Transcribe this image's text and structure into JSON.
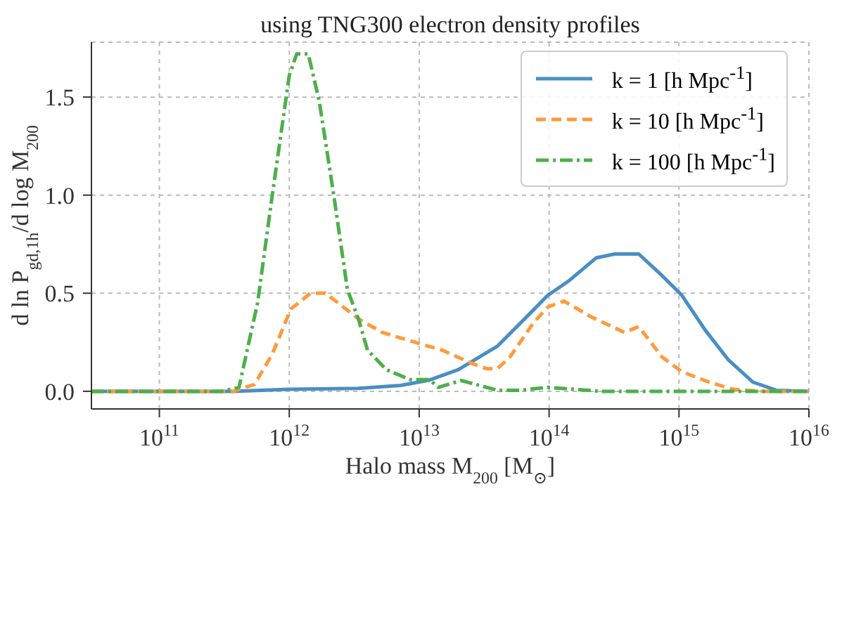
{
  "chart_data": {
    "type": "line",
    "title": "using TNG300 electron density profiles",
    "xlabel": "Halo mass M$_{200}$ [M$_{⊙}$]",
    "ylabel": "d ln P$_{gd,1h}$/d log M$_{200}$",
    "log": "x",
    "grid": true,
    "legend": "top right",
    "xlim": [
      30000000000.0,
      1e+16
    ],
    "ylim": [
      -0.09,
      1.78
    ],
    "xticks": [
      {
        "value": 100000000000.0,
        "label": "10$^{11}$"
      },
      {
        "value": 1000000000000.0,
        "label": "10$^{12}$"
      },
      {
        "value": 10000000000000.0,
        "label": "10$^{13}$"
      },
      {
        "value": 100000000000000.0,
        "label": "10$^{14}$"
      },
      {
        "value": 1000000000000000.0,
        "label": "10$^{15}$"
      },
      {
        "value": 1e+16,
        "label": "10$^{16}$"
      }
    ],
    "yticks": [
      {
        "value": 0,
        "label": "0.0"
      },
      0.5,
      {
        "value": 1,
        "label": "1.0"
      },
      1.5
    ],
    "series": [
      {
        "name": "k = 1 [h Mpc$^{-1}$]",
        "color": "#4a8ec4",
        "line_style": "solid",
        "x": [
          30000000000.0,
          370000000000.0,
          1000000000000.0,
          3400000000000.0,
          7200000000000.0,
          12000000000000.0,
          20000000000000.0,
          40000000000000.0,
          65000000000000.0,
          98000000000000.0,
          140000000000000.0,
          230000000000000.0,
          320000000000000.0,
          490000000000000.0,
          740000000000000.0,
          1050000000000000.0,
          1600000000000000.0,
          2400000000000000.0,
          3700000000000000.0,
          5600000000000000.0,
          1e+16
        ],
        "values": [
          0,
          0,
          0.01,
          0.015,
          0.03,
          0.057,
          0.11,
          0.23,
          0.37,
          0.49,
          0.56,
          0.68,
          0.7,
          0.7,
          0.59,
          0.49,
          0.31,
          0.16,
          0.047,
          0.005,
          0
        ]
      },
      {
        "name": "k = 10 [h Mpc$^{-1}$]",
        "color": "#ff9a3c",
        "line_style": "dashed",
        "x": [
          30000000000.0,
          370000000000.0,
          540000000000.0,
          740000000000.0,
          1030000000000.0,
          1460000000000.0,
          1900000000000.0,
          3400000000000.0,
          5200000000000.0,
          9300000000000.0,
          15000000000000.0,
          26000000000000.0,
          33000000000000.0,
          40000000000000.0,
          50000000000000.0,
          76000000000000.0,
          98000000000000.0,
          130000000000000.0,
          210000000000000.0,
          380000000000000.0,
          490000000000000.0,
          740000000000000.0,
          1050000000000000.0,
          1700000000000000.0,
          2600000000000000.0,
          4400000000000000.0,
          1e+16
        ],
        "values": [
          0,
          0,
          0.035,
          0.19,
          0.42,
          0.5,
          0.5,
          0.37,
          0.3,
          0.25,
          0.21,
          0.14,
          0.115,
          0.115,
          0.175,
          0.35,
          0.43,
          0.46,
          0.38,
          0.3,
          0.33,
          0.175,
          0.1,
          0.047,
          0.01,
          0,
          0
        ]
      },
      {
        "name": "k = 100 [h Mpc$^{-1}$]",
        "color": "#4daf4a",
        "line_style": "dashdot",
        "x": [
          30000000000.0,
          300000000000.0,
          410000000000.0,
          570000000000.0,
          740000000000.0,
          1000000000000.0,
          1140000000000.0,
          1400000000000.0,
          1700000000000.0,
          2200000000000.0,
          2800000000000.0,
          3400000000000.0,
          4000000000000.0,
          5600000000000.0,
          8500000000000.0,
          12000000000000.0,
          14000000000000.0,
          21000000000000.0,
          40000000000000.0,
          59000000000000.0,
          98000000000000.0,
          250000000000000.0,
          1e+16
        ],
        "values": [
          0,
          0,
          0.02,
          0.45,
          1.0,
          1.61,
          1.72,
          1.72,
          1.48,
          1.0,
          0.52,
          0.37,
          0.21,
          0.11,
          0.06,
          0.06,
          0.02,
          0.055,
          0.005,
          0.005,
          0.02,
          0,
          0
        ]
      }
    ]
  }
}
